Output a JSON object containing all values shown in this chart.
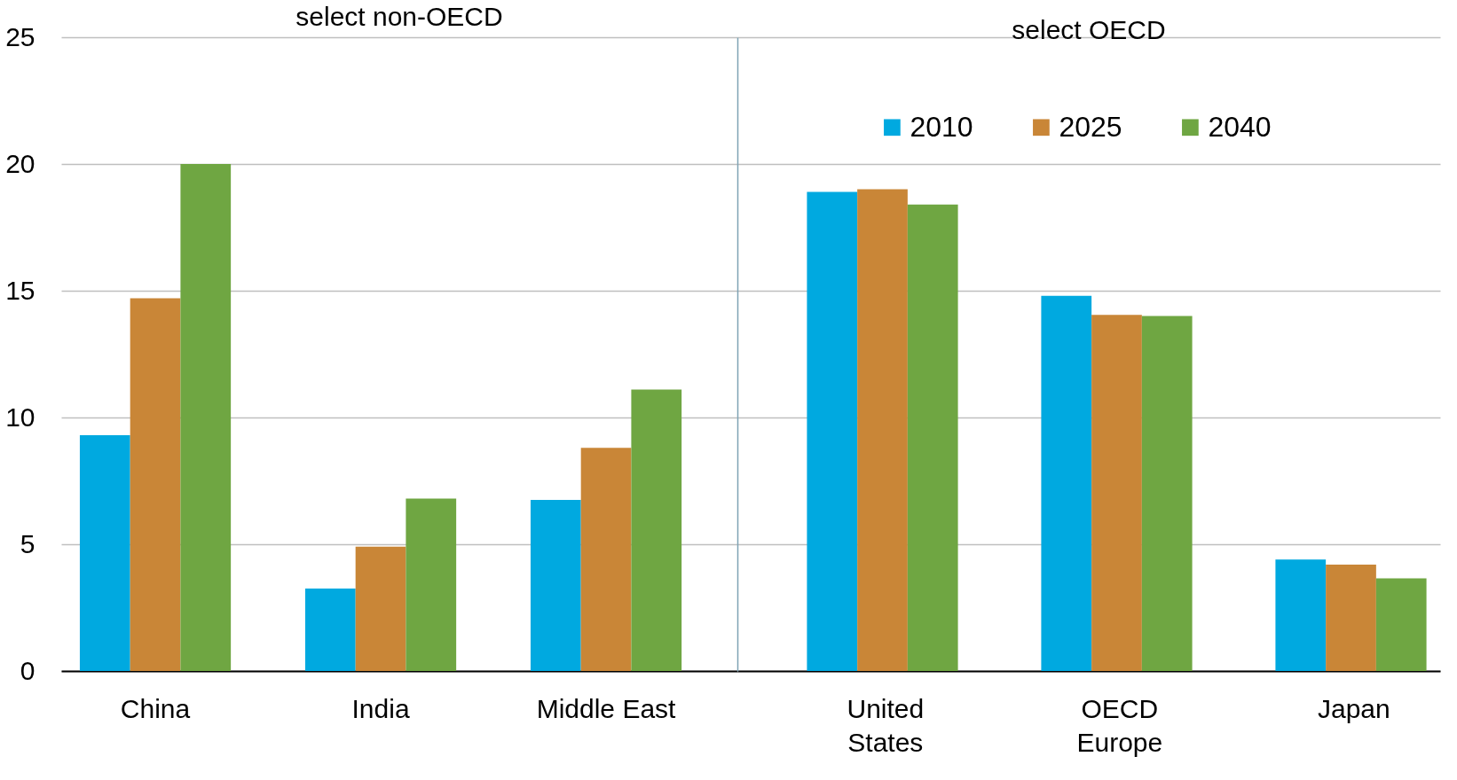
{
  "chart_data": [
    {
      "type": "bar",
      "title": "select non-OECD",
      "categories": [
        "China",
        "India",
        "Middle East"
      ],
      "series": [
        {
          "color": "#00a9e0",
          "values": [
            9.3,
            3.25,
            6.75
          ]
        },
        {
          "color": "#c98637",
          "values": [
            14.7,
            4.9,
            8.8
          ]
        },
        {
          "color": "#6fa642",
          "values": [
            20.0,
            6.8,
            11.1
          ]
        }
      ],
      "ylim": [
        0,
        25
      ],
      "yticks": [
        0,
        5,
        10,
        15,
        20,
        25
      ],
      "grid": "y",
      "legend": false
    },
    {
      "type": "bar",
      "title": "select OECD",
      "categories": [
        "United\nStates",
        "OECD\nEurope",
        "Japan"
      ],
      "series": [
        {
          "name": "2010",
          "color": "#00a9e0",
          "values": [
            18.9,
            14.8,
            4.4
          ]
        },
        {
          "name": "2025",
          "color": "#c98637",
          "values": [
            19.0,
            14.05,
            4.2
          ]
        },
        {
          "name": "2040",
          "color": "#6fa642",
          "values": [
            18.4,
            14.0,
            3.65
          ]
        }
      ],
      "ylim": [
        0,
        25
      ],
      "yticks": [
        0,
        5,
        10,
        15,
        20,
        25
      ],
      "grid": "y",
      "legend": "top",
      "tick_labels": "x"
    }
  ]
}
